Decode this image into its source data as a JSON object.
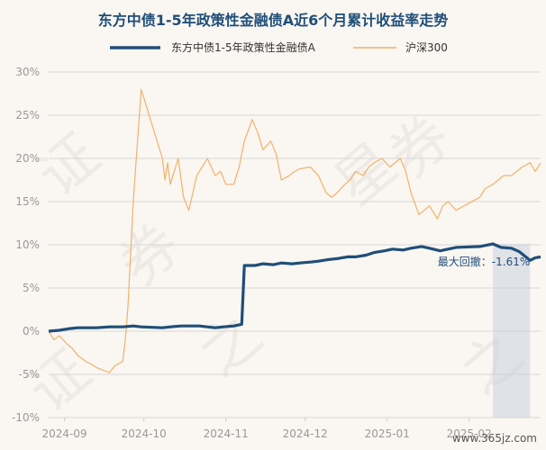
{
  "chart_data": {
    "type": "line",
    "title": "东方中债1-5年政策性金融债A近6个月累计收益率走势",
    "xlabel": "",
    "ylabel": "",
    "ylim": [
      -10,
      30
    ],
    "y_ticks": [
      "30%",
      "25%",
      "20%",
      "15%",
      "10%",
      "5%",
      "0%",
      "-5%",
      "-10%"
    ],
    "x_tick_labels": [
      "2024-09",
      "2024-10",
      "2024-11",
      "2024-12",
      "2025-01",
      "2025-02"
    ],
    "x_range": [
      "2024-08-26",
      "2025-02-28"
    ],
    "grid": "horizontal",
    "legend_position": "top",
    "series": [
      {
        "name": "东方中债1-5年政策性金融债A",
        "color": "#1f4e79",
        "points": [
          [
            "2024-08-26",
            0.0
          ],
          [
            "2024-08-30",
            0.1
          ],
          [
            "2024-09-03",
            0.3
          ],
          [
            "2024-09-06",
            0.4
          ],
          [
            "2024-09-10",
            0.4
          ],
          [
            "2024-09-13",
            0.4
          ],
          [
            "2024-09-18",
            0.5
          ],
          [
            "2024-09-23",
            0.5
          ],
          [
            "2024-09-27",
            0.6
          ],
          [
            "2024-09-30",
            0.5
          ],
          [
            "2024-10-08",
            0.4
          ],
          [
            "2024-10-11",
            0.5
          ],
          [
            "2024-10-15",
            0.6
          ],
          [
            "2024-10-18",
            0.6
          ],
          [
            "2024-10-22",
            0.6
          ],
          [
            "2024-10-25",
            0.5
          ],
          [
            "2024-10-28",
            0.4
          ],
          [
            "2024-10-31",
            0.5
          ],
          [
            "2024-11-04",
            0.6
          ],
          [
            "2024-11-07",
            0.8
          ],
          [
            "2024-11-08",
            7.6
          ],
          [
            "2024-11-12",
            7.6
          ],
          [
            "2024-11-15",
            7.8
          ],
          [
            "2024-11-19",
            7.7
          ],
          [
            "2024-11-22",
            7.9
          ],
          [
            "2024-11-26",
            7.8
          ],
          [
            "2024-11-29",
            7.9
          ],
          [
            "2024-12-03",
            8.0
          ],
          [
            "2024-12-06",
            8.1
          ],
          [
            "2024-12-10",
            8.3
          ],
          [
            "2024-12-13",
            8.4
          ],
          [
            "2024-12-17",
            8.6
          ],
          [
            "2024-12-20",
            8.6
          ],
          [
            "2024-12-24",
            8.8
          ],
          [
            "2024-12-27",
            9.1
          ],
          [
            "2024-12-31",
            9.3
          ],
          [
            "2025-01-03",
            9.5
          ],
          [
            "2025-01-07",
            9.4
          ],
          [
            "2025-01-10",
            9.6
          ],
          [
            "2025-01-14",
            9.8
          ],
          [
            "2025-01-17",
            9.6
          ],
          [
            "2025-01-21",
            9.3
          ],
          [
            "2025-01-24",
            9.5
          ],
          [
            "2025-01-27",
            9.7
          ],
          [
            "2025-02-05",
            9.8
          ],
          [
            "2025-02-10",
            10.1
          ],
          [
            "2025-02-13",
            9.7
          ],
          [
            "2025-02-17",
            9.6
          ],
          [
            "2025-02-20",
            9.2
          ],
          [
            "2025-02-24",
            8.2
          ],
          [
            "2025-02-26",
            8.5
          ],
          [
            "2025-02-28",
            8.6
          ]
        ]
      },
      {
        "name": "沪深300",
        "color": "#f0b26b",
        "points": [
          [
            "2024-08-26",
            0.0
          ],
          [
            "2024-08-28",
            -1.0
          ],
          [
            "2024-08-30",
            -0.5
          ],
          [
            "2024-09-02",
            -1.5
          ],
          [
            "2024-09-04",
            -2.0
          ],
          [
            "2024-09-06",
            -2.8
          ],
          [
            "2024-09-09",
            -3.5
          ],
          [
            "2024-09-11",
            -3.8
          ],
          [
            "2024-09-13",
            -4.2
          ],
          [
            "2024-09-18",
            -4.8
          ],
          [
            "2024-09-20",
            -4.0
          ],
          [
            "2024-09-23",
            -3.5
          ],
          [
            "2024-09-24",
            -1.0
          ],
          [
            "2024-09-25",
            3.0
          ],
          [
            "2024-09-26",
            9.0
          ],
          [
            "2024-09-27",
            15.0
          ],
          [
            "2024-09-30",
            28.0
          ],
          [
            "2024-10-08",
            20.0
          ],
          [
            "2024-10-09",
            17.5
          ],
          [
            "2024-10-10",
            19.5
          ],
          [
            "2024-10-11",
            17.0
          ],
          [
            "2024-10-14",
            20.0
          ],
          [
            "2024-10-16",
            15.5
          ],
          [
            "2024-10-18",
            14.0
          ],
          [
            "2024-10-21",
            18.0
          ],
          [
            "2024-10-23",
            19.0
          ],
          [
            "2024-10-25",
            20.0
          ],
          [
            "2024-10-28",
            18.0
          ],
          [
            "2024-10-30",
            18.5
          ],
          [
            "2024-11-01",
            17.0
          ],
          [
            "2024-11-04",
            17.0
          ],
          [
            "2024-11-06",
            19.0
          ],
          [
            "2024-11-08",
            22.0
          ],
          [
            "2024-11-11",
            24.5
          ],
          [
            "2024-11-13",
            23.0
          ],
          [
            "2024-11-15",
            21.0
          ],
          [
            "2024-11-18",
            22.0
          ],
          [
            "2024-11-20",
            20.5
          ],
          [
            "2024-11-22",
            17.5
          ],
          [
            "2024-11-25",
            18.0
          ],
          [
            "2024-11-27",
            18.5
          ],
          [
            "2024-11-29",
            18.8
          ],
          [
            "2024-12-03",
            19.0
          ],
          [
            "2024-12-06",
            18.0
          ],
          [
            "2024-12-09",
            16.0
          ],
          [
            "2024-12-11",
            15.5
          ],
          [
            "2024-12-13",
            16.0
          ],
          [
            "2024-12-16",
            17.0
          ],
          [
            "2024-12-18",
            17.5
          ],
          [
            "2024-12-20",
            18.5
          ],
          [
            "2024-12-23",
            18.0
          ],
          [
            "2024-12-25",
            19.0
          ],
          [
            "2024-12-27",
            19.5
          ],
          [
            "2024-12-30",
            20.0
          ],
          [
            "2025-01-02",
            19.0
          ],
          [
            "2025-01-06",
            20.0
          ],
          [
            "2025-01-08",
            18.5
          ],
          [
            "2025-01-10",
            16.0
          ],
          [
            "2025-01-13",
            13.5
          ],
          [
            "2025-01-15",
            14.0
          ],
          [
            "2025-01-17",
            14.5
          ],
          [
            "2025-01-20",
            13.0
          ],
          [
            "2025-01-22",
            14.5
          ],
          [
            "2025-01-24",
            15.0
          ],
          [
            "2025-01-27",
            14.0
          ],
          [
            "2025-02-05",
            15.5
          ],
          [
            "2025-02-07",
            16.5
          ],
          [
            "2025-02-10",
            17.0
          ],
          [
            "2025-02-12",
            17.5
          ],
          [
            "2025-02-14",
            18.0
          ],
          [
            "2025-02-17",
            18.0
          ],
          [
            "2025-02-19",
            18.5
          ],
          [
            "2025-02-21",
            19.0
          ],
          [
            "2025-02-24",
            19.5
          ],
          [
            "2025-02-26",
            18.5
          ],
          [
            "2025-02-28",
            19.5
          ]
        ]
      }
    ],
    "annotations": [
      {
        "label": "最大回撤：-1.61%",
        "x_from": "2025-02-10",
        "x_to": "2025-02-24",
        "color": "#1f4e79"
      }
    ]
  },
  "watermark": [
    "证",
    "券",
    "之",
    "星"
  ],
  "site_label": "www.365jz.com",
  "background_color": "#faf6f1",
  "drawdown_shade_color": "#c9d1dc"
}
